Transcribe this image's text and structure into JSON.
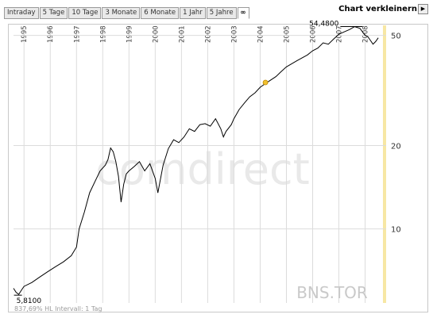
{
  "tabs": [
    "Intraday",
    "5 Tage",
    "10 Tage",
    "3 Monate",
    "6 Monate",
    "1 Jahr",
    "5 Jahre",
    "∞"
  ],
  "active_tab": "∞",
  "shrink_label": "Chart verkleinern",
  "shrink_icon": "play-right-icon",
  "watermark": "comdirect",
  "colors": {
    "line": "#000000",
    "grid": "#dcdcdc",
    "marker": "#f0c030",
    "highlight": "#f7e7a4"
  },
  "chart_data": {
    "type": "line",
    "symbol": "BNS.TOR",
    "y_scale": "log",
    "ylim": [
      5.4,
      54
    ],
    "x_range": [
      1994.6,
      2008.8
    ],
    "year_labels": [
      "1995",
      "1996",
      "1997",
      "1998",
      "1999",
      "2000",
      "2001",
      "2002",
      "2003",
      "2004",
      "2005",
      "2006",
      "2007",
      "2008"
    ],
    "y_ticks": [
      10,
      20,
      50
    ],
    "high_label": "54,4800",
    "low_label": "5,8100",
    "footer": "837,69% HL     Intervall: 1 Tag",
    "series": [
      {
        "x": [
          1994.6,
          1994.7,
          1994.8,
          1994.9,
          1995.0,
          1995.3,
          1995.6,
          1995.9,
          1996.2,
          1996.5,
          1996.8,
          1997.0,
          1997.1,
          1997.3,
          1997.5,
          1997.7,
          1997.9,
          1998.1,
          1998.2,
          1998.3,
          1998.4,
          1998.5,
          1998.6,
          1998.7,
          1998.8,
          1998.9,
          1999.0,
          1999.2,
          1999.4,
          1999.6,
          1999.8,
          2000.0,
          2000.1,
          2000.3,
          2000.5,
          2000.7,
          2000.9,
          2001.1,
          2001.3,
          2001.5,
          2001.7,
          2001.9,
          2002.1,
          2002.3,
          2002.5,
          2002.6,
          2002.7,
          2002.9,
          2003.0,
          2003.2,
          2003.4,
          2003.6,
          2003.8,
          2004.0,
          2004.2,
          2004.4,
          2004.6,
          2004.8,
          2005.0,
          2005.2,
          2005.4,
          2005.6,
          2005.8,
          2006.0,
          2006.2,
          2006.4,
          2006.6,
          2006.8,
          2007.0,
          2007.2,
          2007.4,
          2007.6,
          2007.8,
          2007.9,
          2008.0,
          2008.1,
          2008.2,
          2008.3,
          2008.4,
          2008.5
        ],
        "y": [
          6.1,
          5.9,
          5.8,
          6.0,
          6.2,
          6.4,
          6.7,
          7.0,
          7.3,
          7.6,
          8.0,
          8.6,
          10.0,
          11.5,
          13.5,
          14.8,
          16.2,
          17.0,
          17.8,
          19.6,
          19.0,
          17.5,
          15.5,
          12.5,
          14.5,
          15.8,
          16.2,
          16.8,
          17.5,
          16.2,
          17.2,
          15.2,
          13.5,
          17.0,
          19.5,
          21.0,
          20.5,
          21.5,
          23.0,
          22.5,
          23.8,
          24.0,
          23.5,
          25.0,
          23.0,
          21.5,
          22.5,
          23.8,
          25.0,
          27.0,
          28.5,
          30.0,
          31.0,
          32.5,
          33.5,
          34.5,
          35.5,
          37.0,
          38.5,
          39.5,
          40.5,
          41.5,
          42.5,
          44.0,
          45.0,
          47.0,
          46.5,
          48.5,
          50.5,
          51.5,
          52.5,
          53.8,
          53.0,
          51.5,
          50.0,
          49.5,
          48.0,
          46.5,
          47.5,
          49.0
        ]
      }
    ],
    "markers": [
      {
        "x": 2004.2,
        "y": 33.8
      }
    ]
  }
}
